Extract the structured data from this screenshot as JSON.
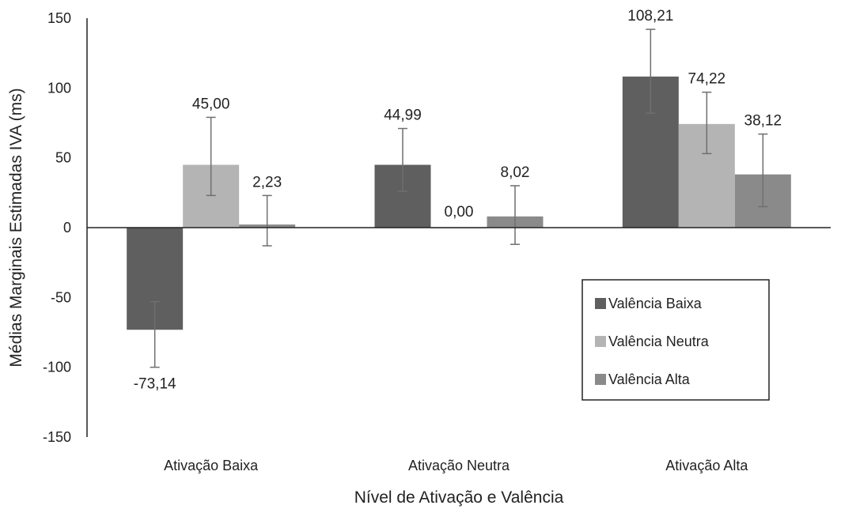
{
  "chart_data": {
    "type": "bar",
    "title": "",
    "xlabel": "Nível de Ativação e Valência",
    "ylabel": "Médias Marginais Estimadas IVA (ms)",
    "ylim": [
      -150,
      150
    ],
    "yticks": [
      150,
      100,
      50,
      0,
      -50,
      -100,
      -150
    ],
    "grid": false,
    "legend_position": "right",
    "categories": [
      "Ativação Baixa",
      "Ativação Neutra",
      "Ativação Alta"
    ],
    "series": [
      {
        "name": "Valência Baixa",
        "color": "#5f5f5f",
        "values": [
          -73.14,
          44.99,
          108.21
        ],
        "labels": [
          "-73,14",
          "44,99",
          "108,21"
        ],
        "error_low": [
          -100,
          26,
          82
        ],
        "error_high": [
          -53,
          71,
          142
        ]
      },
      {
        "name": "Valência Neutra",
        "color": "#b4b4b4",
        "values": [
          45.0,
          0.0,
          74.22
        ],
        "labels": [
          "45,00",
          "0,00",
          "74,22"
        ],
        "error_low": [
          23,
          0,
          53
        ],
        "error_high": [
          79,
          0,
          97
        ]
      },
      {
        "name": "Valência Alta",
        "color": "#8a8a8a",
        "values": [
          2.23,
          8.02,
          38.12
        ],
        "labels": [
          "2,23",
          "8,02",
          "38,12"
        ],
        "error_low": [
          -13,
          -12,
          15
        ],
        "error_high": [
          23,
          30,
          67
        ]
      }
    ]
  }
}
